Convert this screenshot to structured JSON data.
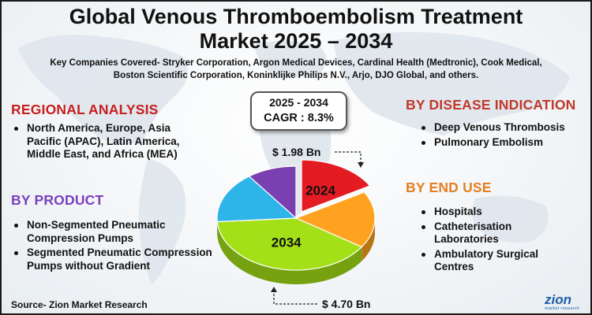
{
  "header": {
    "title_line1": "Global Venous Thromboembolism Treatment",
    "title_line2": "Market 2025 – 2034",
    "companies_line1": "Key Companies Covered- Stryker Corporation, Argon Medical Devices, Cardinal Health (Medtronic), Cook Medical,",
    "companies_line2": "Boston Scientific Corporation, Koninklijke Philips N.V., Arjo, DJO Global, and others."
  },
  "regional": {
    "heading": "REGIONAL ANALYSIS",
    "item": "North America, Europe, Asia Pacific (APAC), Latin America, Middle East, and Africa (MEA)"
  },
  "product": {
    "heading": "BY PRODUCT",
    "items": [
      "Non-Segmented Pneumatic Compression Pumps",
      "Segmented Pneumatic Compression Pumps without Gradient"
    ]
  },
  "disease": {
    "heading": "BY DISEASE INDICATION",
    "items": [
      "Deep Venous Thrombosis",
      "Pulmonary Embolism"
    ]
  },
  "end_use": {
    "heading": "BY END USE",
    "items": [
      "Hospitals",
      "Catheterisation Laboratories",
      "Ambulatory Surgical Centres"
    ]
  },
  "cagr": {
    "years": "2025 - 2034",
    "value": "CAGR : 8.3%"
  },
  "source": "Source- Zion Market Research",
  "logo": {
    "main": "zion",
    "sub": "market research"
  },
  "colors": {
    "regional": "#c81e1e",
    "product": "#7b3fbf",
    "disease": "#c0392b",
    "end_use": "#e67e22"
  },
  "chart_data": {
    "type": "pie",
    "title": "",
    "slices": [
      {
        "label": "2024",
        "value": 1.98,
        "value_label": "$ 1.98 Bn",
        "color": "#e31b23"
      },
      {
        "label": "",
        "value": 2.1,
        "color": "#ffa21f"
      },
      {
        "label": "2034",
        "value": 4.7,
        "value_label": "$ 4.70 Bn",
        "color": "#a4e017"
      },
      {
        "label": "",
        "value": 1.9,
        "color": "#2fb4ea"
      },
      {
        "label": "",
        "value": 1.2,
        "color": "#7a3fb0"
      }
    ]
  }
}
